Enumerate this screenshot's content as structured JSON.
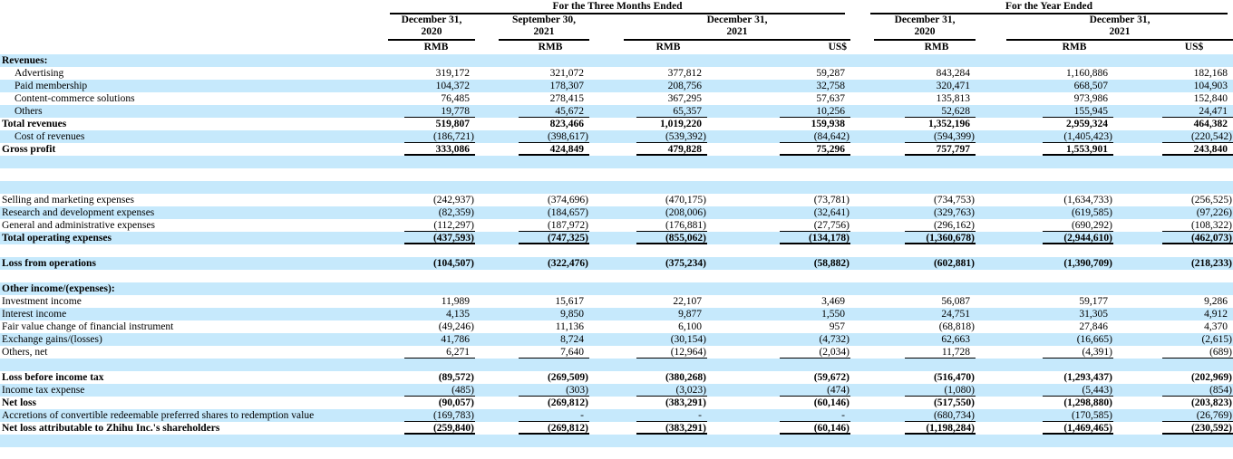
{
  "colors": {
    "stripe": "#c6e9fc",
    "rule": "#000000",
    "text": "#000000"
  },
  "table": {
    "group_headers": {
      "three_months": "For the Three Months Ended",
      "year_ended": "For the Year Ended"
    },
    "period_headers": [
      {
        "line1": "December 31,",
        "line2": "2020"
      },
      {
        "line1": "September 30,",
        "line2": "2021"
      },
      {
        "line1": "December 31,",
        "line2": "2021"
      },
      {
        "line1": "December 31,",
        "line2": "2020"
      },
      {
        "line1": "December 31,",
        "line2": "2021"
      }
    ],
    "currency_headers": [
      "RMB",
      "RMB",
      "RMB",
      "US$",
      "RMB",
      "RMB",
      "US$"
    ],
    "rows": [
      {
        "label": "Revenues:",
        "kind": "section",
        "bg": "blue",
        "rule": "none",
        "values": [
          "",
          "",
          "",
          "",
          "",
          "",
          ""
        ]
      },
      {
        "label": "Advertising",
        "kind": "indent",
        "bg": "white",
        "rule": "none",
        "values": [
          "319,172",
          "321,072",
          "377,812",
          "59,287",
          "843,284",
          "1,160,886",
          "182,168"
        ]
      },
      {
        "label": "Paid membership",
        "kind": "indent",
        "bg": "blue",
        "rule": "none",
        "values": [
          "104,372",
          "178,307",
          "208,756",
          "32,758",
          "320,471",
          "668,507",
          "104,903"
        ]
      },
      {
        "label": "Content-commerce solutions",
        "kind": "indent",
        "bg": "white",
        "rule": "none",
        "values": [
          "76,485",
          "278,415",
          "367,295",
          "57,637",
          "135,813",
          "973,986",
          "152,840"
        ]
      },
      {
        "label": "Others",
        "kind": "indent",
        "bg": "blue",
        "rule": "single",
        "values": [
          "19,778",
          "45,672",
          "65,357",
          "10,256",
          "52,628",
          "155,945",
          "24,471"
        ]
      },
      {
        "label": "Total revenues",
        "kind": "total",
        "bg": "white",
        "rule": "none",
        "values": [
          "519,807",
          "823,466",
          "1,019,220",
          "159,938",
          "1,352,196",
          "2,959,324",
          "464,382"
        ]
      },
      {
        "label": "Cost of revenues",
        "kind": "indent",
        "bg": "blue",
        "rule": "single",
        "values": [
          "(186,721)",
          "(398,617)",
          "(539,392)",
          "(84,642)",
          "(594,399)",
          "(1,405,423)",
          "(220,542)"
        ]
      },
      {
        "label": "Gross profit",
        "kind": "total",
        "bg": "white",
        "rule": "thick",
        "values": [
          "333,086",
          "424,849",
          "479,828",
          "75,296",
          "757,797",
          "1,553,901",
          "243,840"
        ]
      },
      {
        "label": "",
        "kind": "spacer",
        "bg": "blue",
        "rule": "none",
        "values": [
          "",
          "",
          "",
          "",
          "",
          "",
          ""
        ]
      },
      {
        "label": "",
        "kind": "spacer",
        "bg": "white",
        "rule": "none",
        "values": [
          "",
          "",
          "",
          "",
          "",
          "",
          ""
        ]
      },
      {
        "label": "",
        "kind": "spacer",
        "bg": "blue",
        "rule": "none",
        "values": [
          "",
          "",
          "",
          "",
          "",
          "",
          ""
        ]
      },
      {
        "label": "Selling and marketing expenses",
        "kind": "plain",
        "bg": "white",
        "rule": "none",
        "values": [
          "(242,937)",
          "(374,696)",
          "(470,175)",
          "(73,781)",
          "(734,753)",
          "(1,634,733)",
          "(256,525)"
        ]
      },
      {
        "label": "Research and development expenses",
        "kind": "plain",
        "bg": "blue",
        "rule": "none",
        "values": [
          "(82,359)",
          "(184,657)",
          "(208,006)",
          "(32,641)",
          "(329,763)",
          "(619,585)",
          "(97,226)"
        ]
      },
      {
        "label": "General and administrative expenses",
        "kind": "plain",
        "bg": "white",
        "rule": "single",
        "values": [
          "(112,297)",
          "(187,972)",
          "(176,881)",
          "(27,756)",
          "(296,162)",
          "(690,292)",
          "(108,322)"
        ]
      },
      {
        "label": "Total operating expenses",
        "kind": "total",
        "bg": "blue",
        "rule": "thick",
        "values": [
          "(437,593)",
          "(747,325)",
          "(855,062)",
          "(134,178)",
          "(1,360,678)",
          "(2,944,610)",
          "(462,073)"
        ]
      },
      {
        "label": "",
        "kind": "spacer",
        "bg": "white",
        "rule": "none",
        "values": [
          "",
          "",
          "",
          "",
          "",
          "",
          ""
        ]
      },
      {
        "label": "Loss from operations",
        "kind": "total",
        "bg": "blue",
        "rule": "none",
        "values": [
          "(104,507)",
          "(322,476)",
          "(375,234)",
          "(58,882)",
          "(602,881)",
          "(1,390,709)",
          "(218,233)"
        ]
      },
      {
        "label": "",
        "kind": "spacer",
        "bg": "white",
        "rule": "none",
        "values": [
          "",
          "",
          "",
          "",
          "",
          "",
          ""
        ]
      },
      {
        "label": "Other income/(expenses):",
        "kind": "section",
        "bg": "blue",
        "rule": "none",
        "values": [
          "",
          "",
          "",
          "",
          "",
          "",
          ""
        ]
      },
      {
        "label": "Investment income",
        "kind": "plain",
        "bg": "white",
        "rule": "none",
        "values": [
          "11,989",
          "15,617",
          "22,107",
          "3,469",
          "56,087",
          "59,177",
          "9,286"
        ]
      },
      {
        "label": "Interest income",
        "kind": "plain",
        "bg": "blue",
        "rule": "none",
        "values": [
          "4,135",
          "9,850",
          "9,877",
          "1,550",
          "24,751",
          "31,305",
          "4,912"
        ]
      },
      {
        "label": "Fair value change of financial instrument",
        "kind": "plain",
        "bg": "white",
        "rule": "none",
        "values": [
          "(49,246)",
          "11,136",
          "6,100",
          "957",
          "(68,818)",
          "27,846",
          "4,370"
        ]
      },
      {
        "label": "Exchange gains/(losses)",
        "kind": "plain",
        "bg": "blue",
        "rule": "none",
        "values": [
          "41,786",
          "8,724",
          "(30,154)",
          "(4,732)",
          "62,663",
          "(16,665)",
          "(2,615)"
        ]
      },
      {
        "label": "Others, net",
        "kind": "plain",
        "bg": "white",
        "rule": "single",
        "values": [
          "6,271",
          "7,640",
          "(12,964)",
          "(2,034)",
          "11,728",
          "(4,391)",
          "(689)"
        ]
      },
      {
        "label": "",
        "kind": "spacer",
        "bg": "blue",
        "rule": "none",
        "values": [
          "",
          "",
          "",
          "",
          "",
          "",
          ""
        ]
      },
      {
        "label": "Loss before income tax",
        "kind": "total",
        "bg": "white",
        "rule": "none",
        "values": [
          "(89,572)",
          "(269,509)",
          "(380,268)",
          "(59,672)",
          "(516,470)",
          "(1,293,437)",
          "(202,969)"
        ]
      },
      {
        "label": "Income tax expense",
        "kind": "plain",
        "bg": "blue",
        "rule": "single",
        "values": [
          "(485)",
          "(303)",
          "(3,023)",
          "(474)",
          "(1,080)",
          "(5,443)",
          "(854)"
        ]
      },
      {
        "label": "Net loss",
        "kind": "total",
        "bg": "white",
        "rule": "none",
        "values": [
          "(90,057)",
          "(269,812)",
          "(383,291)",
          "(60,146)",
          "(517,550)",
          "(1,298,880)",
          "(203,823)"
        ]
      },
      {
        "label": "Accretions of convertible redeemable preferred shares to redemption value",
        "kind": "plain",
        "bg": "blue",
        "rule": "single",
        "values": [
          "(169,783)",
          "-",
          "-",
          "-",
          "(680,734)",
          "(170,585)",
          "(26,769)"
        ]
      },
      {
        "label": "Net loss attributable to Zhihu Inc.'s shareholders",
        "kind": "total",
        "bg": "white",
        "rule": "thick",
        "values": [
          "(259,840)",
          "(269,812)",
          "(383,291)",
          "(60,146)",
          "(1,198,284)",
          "(1,469,465)",
          "(230,592)"
        ]
      },
      {
        "label": "",
        "kind": "spacer",
        "bg": "blue",
        "rule": "none",
        "values": [
          "",
          "",
          "",
          "",
          "",
          "",
          ""
        ]
      }
    ]
  }
}
